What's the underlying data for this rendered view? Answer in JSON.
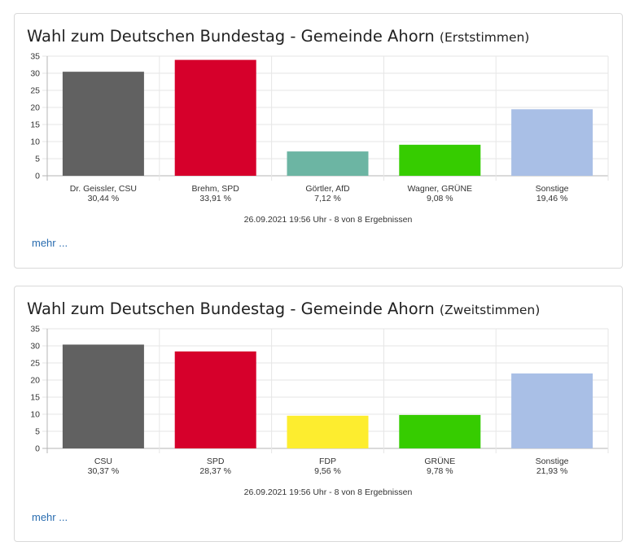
{
  "cards": [
    {
      "title": "Wahl zum Deutschen Bundestag - Gemeinde Ahorn",
      "subtitle": "(Erststimmen)",
      "footer": "26.09.2021 19:56 Uhr - 8 von 8 Ergebnissen",
      "more_link": "mehr ..."
    },
    {
      "title": "Wahl zum Deutschen Bundestag - Gemeinde Ahorn",
      "subtitle": "(Zweitstimmen)",
      "footer": "26.09.2021 19:56 Uhr - 8 von 8 Ergebnissen",
      "more_link": "mehr ..."
    }
  ],
  "chart_data": [
    {
      "type": "bar",
      "title": "Wahl zum Deutschen Bundestag - Gemeinde Ahorn (Erststimmen)",
      "categories": [
        "Dr. Geissler, CSU",
        "Brehm, SPD",
        "Görtler, AfD",
        "Wagner, GRÜNE",
        "Sonstige"
      ],
      "values": [
        30.44,
        33.91,
        7.12,
        9.08,
        19.46
      ],
      "value_labels": [
        "30,44 %",
        "33,91 %",
        "7,12 %",
        "9,08 %",
        "19,46 %"
      ],
      "colors": [
        "#616161",
        "#d6002b",
        "#6cb5a3",
        "#36cc00",
        "#a9bfe6"
      ],
      "ylim": [
        0,
        35
      ],
      "yticks": [
        0,
        5,
        10,
        15,
        20,
        25,
        30,
        35
      ],
      "grid": true
    },
    {
      "type": "bar",
      "title": "Wahl zum Deutschen Bundestag - Gemeinde Ahorn (Zweitstimmen)",
      "categories": [
        "CSU",
        "SPD",
        "FDP",
        "GRÜNE",
        "Sonstige"
      ],
      "values": [
        30.37,
        28.37,
        9.56,
        9.78,
        21.93
      ],
      "value_labels": [
        "30,37 %",
        "28,37 %",
        "9,56 %",
        "9,78 %",
        "21,93 %"
      ],
      "colors": [
        "#616161",
        "#d6002b",
        "#fded2f",
        "#36cc00",
        "#a9bfe6"
      ],
      "ylim": [
        0,
        35
      ],
      "yticks": [
        0,
        5,
        10,
        15,
        20,
        25,
        30,
        35
      ],
      "grid": true
    }
  ]
}
